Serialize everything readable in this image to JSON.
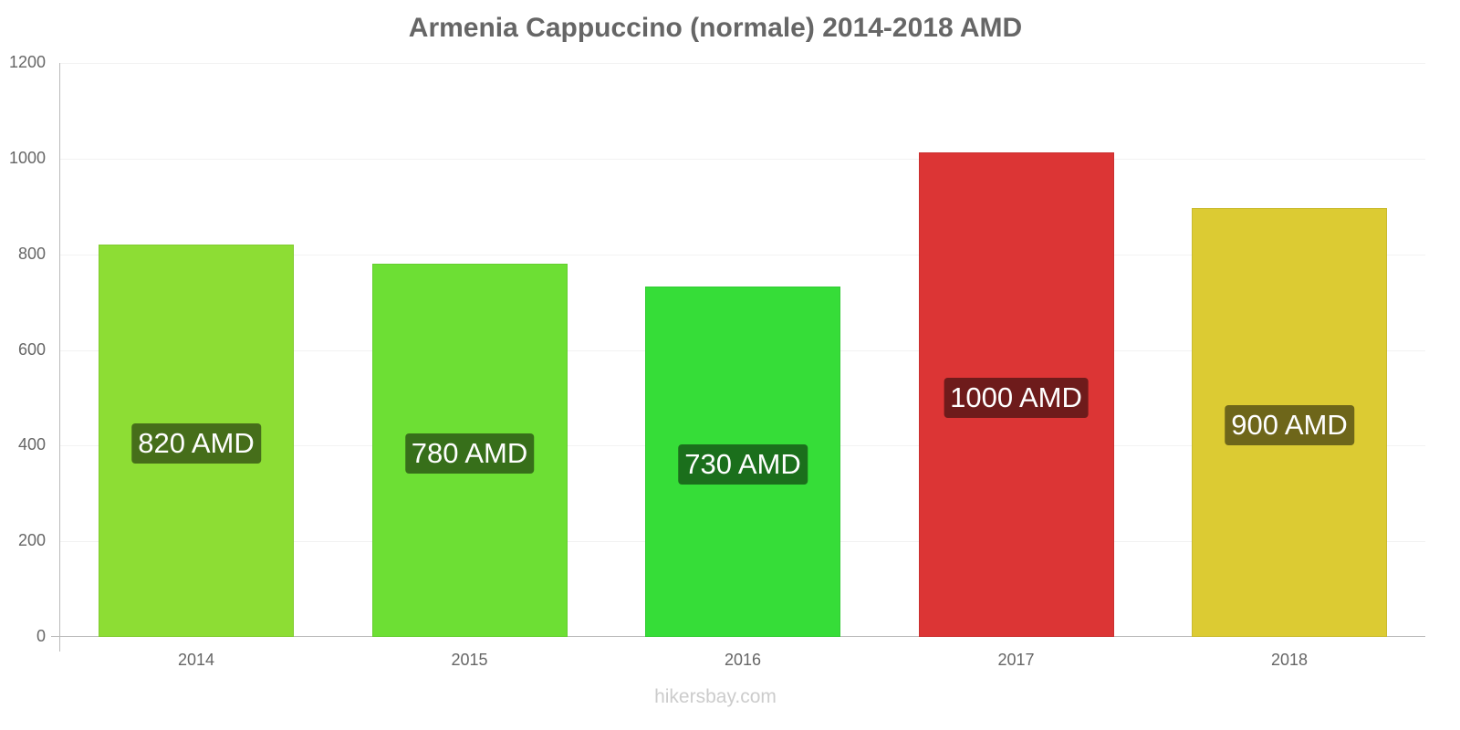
{
  "chart_data": {
    "type": "bar",
    "title": "Armenia Cappuccino (normale) 2014-2018 AMD",
    "categories": [
      "2014",
      "2015",
      "2016",
      "2017",
      "2018"
    ],
    "values": [
      820,
      780,
      730,
      1000,
      900
    ],
    "data_labels": [
      "820 AMD",
      "780 AMD",
      "730 AMD",
      "1000 AMD",
      "900 AMD"
    ],
    "colors": [
      "#8ddd34",
      "#6ddf34",
      "#36dd38",
      "#dc3535",
      "#dccb33"
    ],
    "label_bg_colors": [
      "#466e1a",
      "#376f1a",
      "#1b6f1c",
      "#6e1b1b",
      "#6e661a"
    ],
    "xlabel": "",
    "ylabel": "",
    "ylim": [
      0,
      1200
    ],
    "yticks": [
      0,
      200,
      400,
      600,
      800,
      1000,
      1200
    ],
    "grid": true,
    "legend": null
  },
  "footer": {
    "credit": "hikersbay.com"
  }
}
